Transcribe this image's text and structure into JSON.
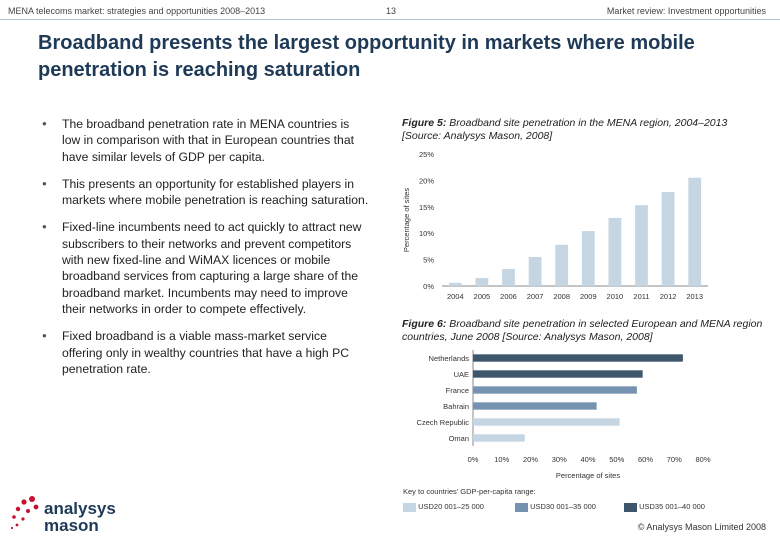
{
  "header": {
    "left": "MENA telecoms market: strategies and opportunities 2008–2013",
    "page_number": "13",
    "right": "Market review: Investment opportunities"
  },
  "title": "Broadband presents the largest opportunity in markets where mobile penetration is reaching saturation",
  "bullets": [
    "The broadband penetration rate in MENA countries is low in comparison with that in European countries that have similar levels of GDP per capita.",
    "This presents an opportunity for established players in markets where mobile penetration is reaching saturation.",
    "Fixed-line incumbents need to act quickly to attract new subscribers to their networks and prevent competitors with new fixed-line and WiMAX licences or mobile broadband services from capturing a large share of the broadband market. Incumbents may need to improve their networks in order to compete effectively.",
    "Fixed broadband is a viable mass-market service offering only in wealthy countries that have a high PC penetration rate."
  ],
  "figure5": {
    "label": "Figure 5:",
    "caption": "Broadband site penetration in the MENA region, 2004–2013 [Source: Analysys Mason, 2008]"
  },
  "figure6": {
    "label": "Figure 6:",
    "caption": "Broadband site penetration in selected European and MENA region countries, June 2008 [Source: Analysys Mason, 2008]"
  },
  "legend": {
    "title": "Key to countries' GDP-per-capita range:",
    "items": [
      {
        "label": "USD20 001–25 000",
        "color": "#c5d5e2"
      },
      {
        "label": "USD30 001–35 000",
        "color": "#7593b0"
      },
      {
        "label": "USD35 001–40 000",
        "color": "#3e566b"
      }
    ]
  },
  "logo": {
    "line1": "analysys",
    "line2": "mason"
  },
  "copyright": "© Analysys Mason Limited 2008",
  "chart_data": [
    {
      "type": "bar",
      "categories": [
        "2004",
        "2005",
        "2006",
        "2007",
        "2008",
        "2009",
        "2010",
        "2011",
        "2012",
        "2013"
      ],
      "values": [
        0.6,
        1.5,
        3.2,
        5.5,
        7.8,
        10.4,
        12.9,
        15.3,
        17.8,
        20.5
      ],
      "ylabel": "Percentage of sites",
      "yticks": [
        "0%",
        "5%",
        "10%",
        "15%",
        "20%",
        "25%"
      ],
      "ylim": [
        0,
        25
      ],
      "color": "#c5d5e2",
      "grid": false
    },
    {
      "type": "bar",
      "orientation": "horizontal",
      "categories": [
        "Netherlands",
        "UAE",
        "France",
        "Bahrain",
        "Czech Republic",
        "Oman"
      ],
      "values": [
        73,
        59,
        57,
        43,
        51,
        18
      ],
      "colors": [
        "#3e566b",
        "#3e566b",
        "#7593b0",
        "#7593b0",
        "#c5d5e2",
        "#c5d5e2"
      ],
      "xlabel": "Percentage of sites",
      "xticks": [
        "0%",
        "10%",
        "20%",
        "30%",
        "40%",
        "50%",
        "60%",
        "70%",
        "80%"
      ],
      "xlim": [
        0,
        80
      ],
      "grid": false
    }
  ]
}
